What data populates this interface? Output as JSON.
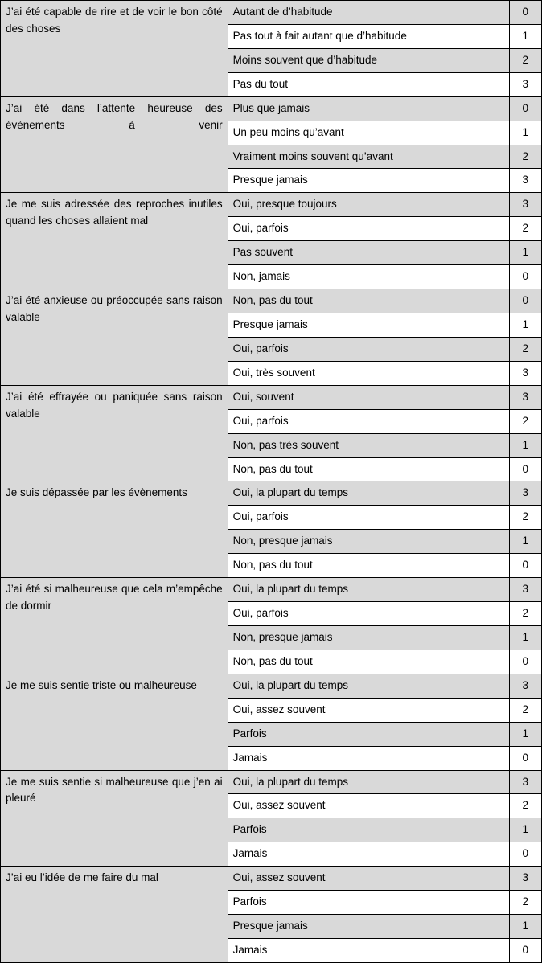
{
  "colors": {
    "shade": "#d9d9d9",
    "white": "#ffffff",
    "border": "#000000",
    "text": "#000000"
  },
  "typography": {
    "font_family": "Arial",
    "font_size_pt": 10,
    "line_height": 1.55
  },
  "layout": {
    "col_widths_pct": [
      42,
      52,
      6
    ]
  },
  "questions": [
    {
      "text": "J’ai été capable de rire et de voir le bon côté des choses",
      "justify_full": false,
      "answers": [
        {
          "label": "Autant de d’habitude",
          "score": "0",
          "shaded": true
        },
        {
          "label": "Pas tout à fait autant que d’habitude",
          "score": "1",
          "shaded": false
        },
        {
          "label": "Moins souvent que d’habitude",
          "score": "2",
          "shaded": true
        },
        {
          "label": "Pas du tout",
          "score": "3",
          "shaded": false
        }
      ]
    },
    {
      "text": "J’ai été dans l’attente heureuse des évènements à venir",
      "justify_full": true,
      "answers": [
        {
          "label": "Plus que jamais",
          "score": "0",
          "shaded": true
        },
        {
          "label": "Un peu moins qu’avant",
          "score": "1",
          "shaded": false
        },
        {
          "label": "Vraiment moins souvent qu’avant",
          "score": "2",
          "shaded": true
        },
        {
          "label": "Presque jamais",
          "score": "3",
          "shaded": false
        }
      ]
    },
    {
      "text": "Je me suis adressée des reproches inutiles quand les choses allaient mal",
      "justify_full": false,
      "answers": [
        {
          "label": "Oui, presque toujours",
          "score": "3",
          "shaded": true
        },
        {
          "label": "Oui, parfois",
          "score": "2",
          "shaded": false
        },
        {
          "label": "Pas souvent",
          "score": "1",
          "shaded": true
        },
        {
          "label": "Non, jamais",
          "score": "0",
          "shaded": false
        }
      ]
    },
    {
      "text": "J’ai été anxieuse ou préoccupée sans raison valable",
      "justify_full": false,
      "answers": [
        {
          "label": "Non, pas du tout",
          "score": "0",
          "shaded": true
        },
        {
          "label": "Presque jamais",
          "score": "1",
          "shaded": false
        },
        {
          "label": "Oui, parfois",
          "score": "2",
          "shaded": true
        },
        {
          "label": "Oui, très souvent",
          "score": "3",
          "shaded": false
        }
      ]
    },
    {
      "text": "J’ai été effrayée ou paniquée sans raison valable",
      "justify_full": true,
      "answers": [
        {
          "label": "Oui, souvent",
          "score": "3",
          "shaded": true
        },
        {
          "label": "Oui, parfois",
          "score": "2",
          "shaded": false
        },
        {
          "label": "Non, pas très souvent",
          "score": "1",
          "shaded": true
        },
        {
          "label": "Non, pas du tout",
          "score": "0",
          "shaded": false
        }
      ]
    },
    {
      "text": "Je suis dépassée par les évènements",
      "justify_full": false,
      "answers": [
        {
          "label": "Oui, la plupart du temps",
          "score": "3",
          "shaded": true
        },
        {
          "label": "Oui, parfois",
          "score": "2",
          "shaded": false
        },
        {
          "label": "Non, presque jamais",
          "score": "1",
          "shaded": true
        },
        {
          "label": "Non, pas du tout",
          "score": "0",
          "shaded": false
        }
      ]
    },
    {
      "text": "J’ai été si malheureuse que cela m’empêche de dormir",
      "justify_full": false,
      "answers": [
        {
          "label": "Oui, la plupart du temps",
          "score": "3",
          "shaded": true
        },
        {
          "label": "Oui, parfois",
          "score": "2",
          "shaded": false
        },
        {
          "label": "Non, presque jamais",
          "score": "1",
          "shaded": true
        },
        {
          "label": "Non, pas du tout",
          "score": "0",
          "shaded": false
        }
      ]
    },
    {
      "text": "Je me suis sentie triste ou malheureuse",
      "justify_full": false,
      "answers": [
        {
          "label": "Oui, la plupart du temps",
          "score": "3",
          "shaded": true
        },
        {
          "label": "Oui, assez souvent",
          "score": "2",
          "shaded": false
        },
        {
          "label": "Parfois",
          "score": "1",
          "shaded": true
        },
        {
          "label": "Jamais",
          "score": "0",
          "shaded": false
        }
      ]
    },
    {
      "text": "Je me suis sentie si malheureuse que j’en ai pleuré",
      "justify_full": false,
      "answers": [
        {
          "label": "Oui, la plupart du temps",
          "score": "3",
          "shaded": true
        },
        {
          "label": "Oui, assez souvent",
          "score": "2",
          "shaded": false
        },
        {
          "label": "Parfois",
          "score": "1",
          "shaded": true
        },
        {
          "label": "Jamais",
          "score": "0",
          "shaded": false
        }
      ]
    },
    {
      "text": "J’ai eu l’idée de me faire du mal",
      "justify_full": false,
      "answers": [
        {
          "label": "Oui, assez souvent",
          "score": "3",
          "shaded": true
        },
        {
          "label": "Parfois",
          "score": "2",
          "shaded": false
        },
        {
          "label": "Presque jamais",
          "score": "1",
          "shaded": true
        },
        {
          "label": "Jamais",
          "score": "0",
          "shaded": false
        }
      ]
    }
  ]
}
